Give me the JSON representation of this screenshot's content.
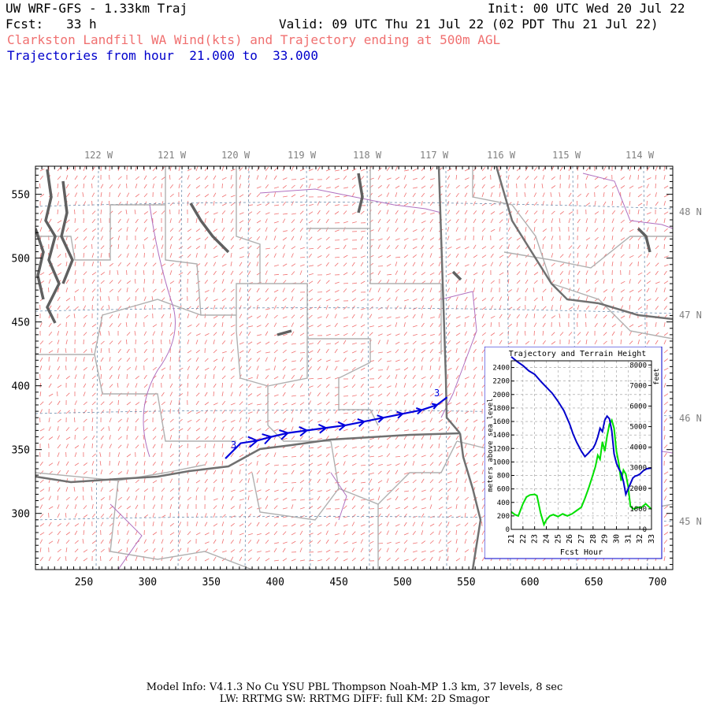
{
  "header": {
    "model_title": "UW WRF-GFS - 1.33km Traj",
    "init": "Init: 00 UTC Wed 20 Jul 22",
    "fcst": "Fcst:   33 h",
    "valid": "Valid: 09 UTC Thu 21 Jul 22 (02 PDT Thu 21 Jul 22)",
    "subtitle": "Clarkston Landfill WA Wind(kts) and Trajectory ending at 500m AGL",
    "traj_range": "Trajectories from hour  21.000 to  33.000"
  },
  "map": {
    "lon_labels": [
      "122 W",
      "121 W",
      "120 W",
      "119 W",
      "118 W",
      "117 W",
      "116 W",
      "115 W",
      "114 W"
    ],
    "lat_labels": [
      "48 N",
      "47 N",
      "46 N",
      "45 N"
    ],
    "x_ticks": [
      "250",
      "300",
      "350",
      "400",
      "450",
      "500",
      "550",
      "600",
      "650",
      "700"
    ],
    "y_ticks": [
      "550",
      "500",
      "450",
      "400",
      "350",
      "300"
    ],
    "grid_x_range": [
      212,
      712
    ],
    "grid_y_range": [
      256,
      572
    ],
    "trajectory": {
      "start_label": "3",
      "end_label": "3",
      "points_grid": [
        [
          361,
          343
        ],
        [
          373,
          355
        ],
        [
          386,
          357
        ],
        [
          397,
          360
        ],
        [
          410,
          363
        ],
        [
          425,
          365
        ],
        [
          440,
          367
        ],
        [
          455,
          369
        ],
        [
          470,
          372
        ],
        [
          485,
          375
        ],
        [
          500,
          378
        ],
        [
          515,
          381
        ],
        [
          527,
          385
        ],
        [
          535,
          391
        ]
      ],
      "color": "#0000dd"
    },
    "wind_color": "#f07070",
    "border_color": "#707070",
    "county_color": "#b0b0b0",
    "river_color": "#b070c0"
  },
  "chart_data": {
    "type": "line",
    "title": "Trajectory and Terrain Height",
    "xlabel": "Fcst Hour",
    "ylabel": "meters above sea level",
    "y2label": "feet",
    "xlim": [
      21,
      33
    ],
    "ylim": [
      0,
      2500
    ],
    "x_ticks": [
      "21",
      "22",
      "23",
      "24",
      "25",
      "26",
      "27",
      "28",
      "29",
      "30",
      "31",
      "32",
      "33"
    ],
    "y_ticks": [
      "0",
      "200",
      "400",
      "600",
      "800",
      "1000",
      "1200",
      "1400",
      "1600",
      "1800",
      "2000",
      "2200",
      "2400"
    ],
    "y2_ticks": [
      "0",
      "1000",
      "2000",
      "3000",
      "4000",
      "5000",
      "6000",
      "7000",
      "8000"
    ],
    "series": [
      {
        "color": "#0000cc",
        "x": [
          21.0,
          21.5,
          22.0,
          22.5,
          23.0,
          23.5,
          24.0,
          24.5,
          25.0,
          25.5,
          26.0,
          26.3,
          26.6,
          27.0,
          27.3,
          27.6,
          27.8,
          28.0,
          28.2,
          28.4,
          28.6,
          28.8,
          29.0,
          29.2,
          29.4,
          29.6,
          29.8,
          30.0,
          30.2,
          30.4,
          30.6,
          30.8,
          31.0,
          31.2,
          31.4,
          31.6,
          31.8,
          32.0,
          32.3,
          32.6,
          33.0
        ],
        "y": [
          2560,
          2490,
          2430,
          2350,
          2300,
          2200,
          2110,
          2020,
          1900,
          1760,
          1560,
          1410,
          1290,
          1160,
          1080,
          1130,
          1170,
          1200,
          1270,
          1370,
          1500,
          1450,
          1620,
          1680,
          1640,
          1460,
          1120,
          980,
          900,
          840,
          710,
          520,
          600,
          680,
          760,
          790,
          800,
          820,
          870,
          900,
          910
        ]
      },
      {
        "color": "#00e000",
        "x": [
          21.0,
          21.3,
          21.6,
          22.0,
          22.3,
          22.6,
          23.0,
          23.2,
          23.5,
          23.8,
          24.0,
          24.3,
          24.6,
          25.0,
          25.4,
          25.8,
          26.2,
          26.6,
          27.0,
          27.3,
          27.6,
          27.9,
          28.2,
          28.4,
          28.6,
          28.8,
          29.0,
          29.2,
          29.4,
          29.6,
          29.8,
          30.0,
          30.2,
          30.4,
          30.6,
          30.8,
          31.0,
          31.2,
          31.5,
          31.8,
          32.1,
          32.5,
          33.0
        ],
        "y": [
          260,
          220,
          200,
          380,
          480,
          510,
          520,
          500,
          250,
          70,
          140,
          200,
          220,
          190,
          230,
          200,
          230,
          280,
          330,
          460,
          600,
          760,
          930,
          1100,
          1040,
          1300,
          1160,
          1380,
          1560,
          1620,
          1500,
          1160,
          980,
          720,
          880,
          820,
          640,
          340,
          300,
          330,
          320,
          380,
          300
        ]
      }
    ]
  },
  "footer": {
    "line1": "Model Info: V4.1.3    No Cu    YSU PBL   Thompson     Noah-MP    1.3 km,  37 levels,     8 sec",
    "line2": "LW: RRTMG SW: RRTMG    DIFF: full    KM: 2D Smagor"
  }
}
